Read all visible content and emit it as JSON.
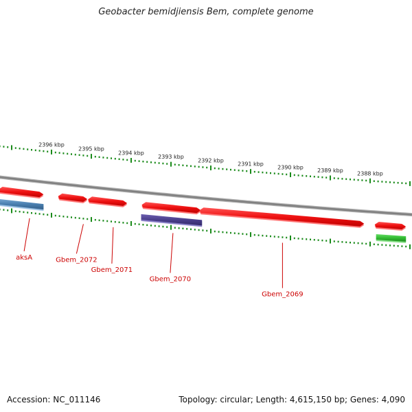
{
  "title": "Geobacter bemidjiensis Bem, complete genome",
  "footer": {
    "accession": "Accession: NC_011146",
    "summary": "Topology: circular; Length: 4,615,150 bp; Genes: 4,090"
  },
  "colors": {
    "backbone": "#808080",
    "tick": "#1a8a1a",
    "gene_red": "#ee1111",
    "gene_blue": "#4a7fb0",
    "gene_purple": "#4b3f8c",
    "gene_green": "#33bb33",
    "label": "#cc0000"
  },
  "scale": {
    "unit": "kbp",
    "ticks": [
      {
        "kbp": 2396,
        "label": "2396 kbp"
      },
      {
        "kbp": 2395,
        "label": "2395 kbp"
      },
      {
        "kbp": 2394,
        "label": "2394 kbp"
      },
      {
        "kbp": 2393,
        "label": "2393 kbp"
      },
      {
        "kbp": 2392,
        "label": "2392 kbp"
      },
      {
        "kbp": 2391,
        "label": "2391 kbp"
      },
      {
        "kbp": 2390,
        "label": "2390 kbp"
      },
      {
        "kbp": 2389,
        "label": "2389 kbp"
      },
      {
        "kbp": 2388,
        "label": "2388 kbp"
      }
    ]
  },
  "features": [
    {
      "name": "aksA",
      "strand": "outer",
      "color": "gene_red",
      "start_kbp": 2396.2,
      "end_kbp": 2397.3
    },
    {
      "name": "aksA",
      "strand": "inner",
      "color": "gene_blue",
      "start_kbp": 2396.2,
      "end_kbp": 2397.4
    },
    {
      "name": "Gbem_2072",
      "strand": "outer",
      "color": "gene_red",
      "start_kbp": 2395.1,
      "end_kbp": 2395.8
    },
    {
      "name": "Gbem_2071",
      "strand": "outer",
      "color": "gene_red",
      "start_kbp": 2394.1,
      "end_kbp": 2395.05
    },
    {
      "name": "Gbem_2070",
      "strand": "outer",
      "color": "gene_red",
      "start_kbp": 2392.25,
      "end_kbp": 2393.7
    },
    {
      "name": "Gbem_2070",
      "strand": "inner",
      "color": "gene_purple",
      "start_kbp": 2392.22,
      "end_kbp": 2393.75
    },
    {
      "name": "Gbem_2069",
      "strand": "outer",
      "color": "gene_red",
      "start_kbp": 2388.15,
      "end_kbp": 2392.25
    },
    {
      "name": "",
      "strand": "outer",
      "color": "gene_red",
      "start_kbp": 2387.1,
      "end_kbp": 2387.85
    },
    {
      "name": "",
      "strand": "inner",
      "color": "gene_green",
      "start_kbp": 2387.1,
      "end_kbp": 2387.85
    }
  ],
  "labels": [
    {
      "text": "aksA",
      "kbp": 2396.55
    },
    {
      "text": "Gbem_2072",
      "kbp": 2395.2
    },
    {
      "text": "Gbem_2071",
      "kbp": 2394.45
    },
    {
      "text": "Gbem_2070",
      "kbp": 2392.95
    },
    {
      "text": "Gbem_2069",
      "kbp": 2390.2
    }
  ]
}
